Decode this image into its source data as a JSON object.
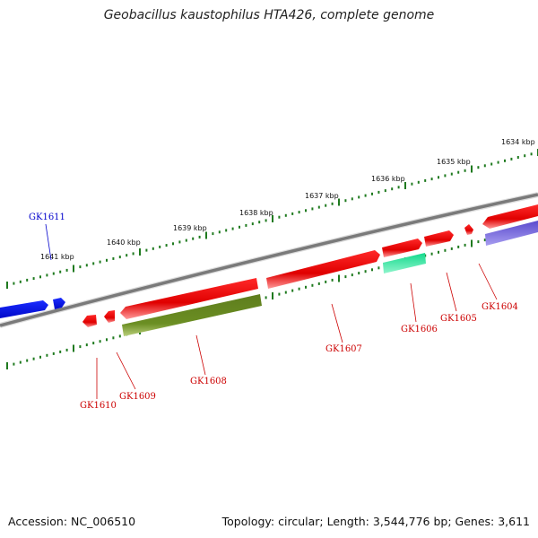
{
  "title": "Geobacillus kaustophilus HTA426, complete genome",
  "footer": {
    "accession": "Accession: NC_006510",
    "summary": "Topology: circular; Length: 3,544,776 bp; Genes: 3,611"
  },
  "colors": {
    "backbone": "#7a7a7a",
    "ticks": "#1f7a1f",
    "forward_gene": "#e60000",
    "reverse_gene": "#e60000",
    "gene_label": "#cc0000",
    "gk1611_label": "#0000cc",
    "gk1611_fill": "#0a14e6",
    "gk1608_fill": "#6b8e23",
    "gk1606_fill": "#1de9a0",
    "gk1604_reverse_fill": "#6a5acd"
  },
  "kbp_labels": [
    "1641 kbp",
    "1640 kbp",
    "1639 kbp",
    "1638 kbp",
    "1637 kbp",
    "1636 kbp",
    "1635 kbp",
    "1634 kbp"
  ],
  "genes": [
    {
      "id": "GK1611",
      "strand": "+",
      "label_color": "blue"
    },
    {
      "id": "GK1610",
      "strand": "-",
      "label_color": "red"
    },
    {
      "id": "GK1609",
      "strand": "-",
      "label_color": "red"
    },
    {
      "id": "GK1608",
      "strand": "-",
      "label_color": "red"
    },
    {
      "id": "GK1607",
      "strand": "+",
      "label_color": "red"
    },
    {
      "id": "GK1606",
      "strand": "+",
      "label_color": "red"
    },
    {
      "id": "GK1605",
      "strand": "+",
      "label_color": "red"
    },
    {
      "id": "GK1604",
      "strand": "+",
      "label_color": "red"
    }
  ]
}
